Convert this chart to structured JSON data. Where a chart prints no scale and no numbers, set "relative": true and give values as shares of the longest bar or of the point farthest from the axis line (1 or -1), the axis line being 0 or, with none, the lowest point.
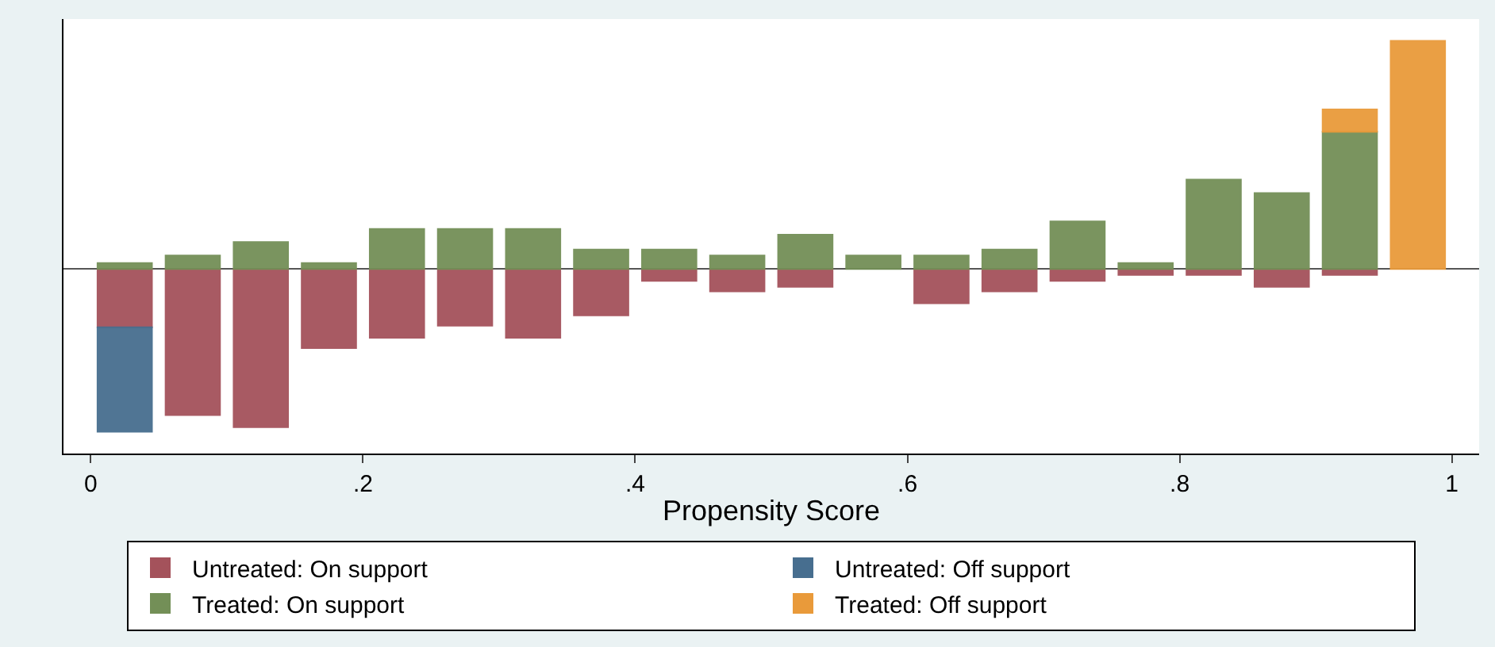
{
  "chart_data": {
    "type": "bar",
    "relative": true,
    "stacked": true,
    "x": [
      0.025,
      0.075,
      0.125,
      0.175,
      0.225,
      0.275,
      0.325,
      0.375,
      0.425,
      0.475,
      0.525,
      0.575,
      0.625,
      0.675,
      0.725,
      0.775,
      0.825,
      0.875,
      0.925,
      0.975
    ],
    "xlim": [
      -0.02,
      1.02
    ],
    "xticks": [
      0,
      {
        "value": 0.2,
        "label": ".2"
      },
      {
        "value": 0.4,
        "label": ".4"
      },
      {
        "value": 0.6,
        "label": ".6"
      },
      {
        "value": 0.8,
        "label": ".8"
      },
      1
    ],
    "xlabel": "Propensity Score",
    "series": [
      {
        "name": "Untreated: On support",
        "color": "#a4525b",
        "values": [
          -0.255,
          -0.64,
          -0.693,
          -0.346,
          -0.301,
          -0.248,
          -0.301,
          -0.203,
          -0.052,
          -0.098,
          -0.078,
          null,
          -0.15,
          -0.098,
          -0.052,
          -0.026,
          -0.026,
          -0.078,
          -0.026,
          null
        ]
      },
      {
        "name": "Untreated: Off support",
        "color": "#476e8f",
        "values": [
          -0.458,
          null,
          null,
          null,
          null,
          null,
          null,
          null,
          null,
          null,
          null,
          null,
          null,
          null,
          null,
          null,
          null,
          null,
          null,
          null
        ]
      },
      {
        "name": "Treated: On support",
        "color": "#738f57",
        "values": [
          0.026,
          0.059,
          0.118,
          0.026,
          0.176,
          0.176,
          0.176,
          0.085,
          0.085,
          0.059,
          0.15,
          0.059,
          0.059,
          0.085,
          0.209,
          0.026,
          0.392,
          0.333,
          0.601,
          null
        ]
      },
      {
        "name": "Treated: Off support",
        "color": "#e99a3a",
        "values": [
          null,
          null,
          null,
          null,
          null,
          null,
          null,
          null,
          null,
          null,
          null,
          null,
          null,
          null,
          null,
          null,
          null,
          null,
          0.098,
          1
        ]
      }
    ],
    "legend": "bottom"
  }
}
